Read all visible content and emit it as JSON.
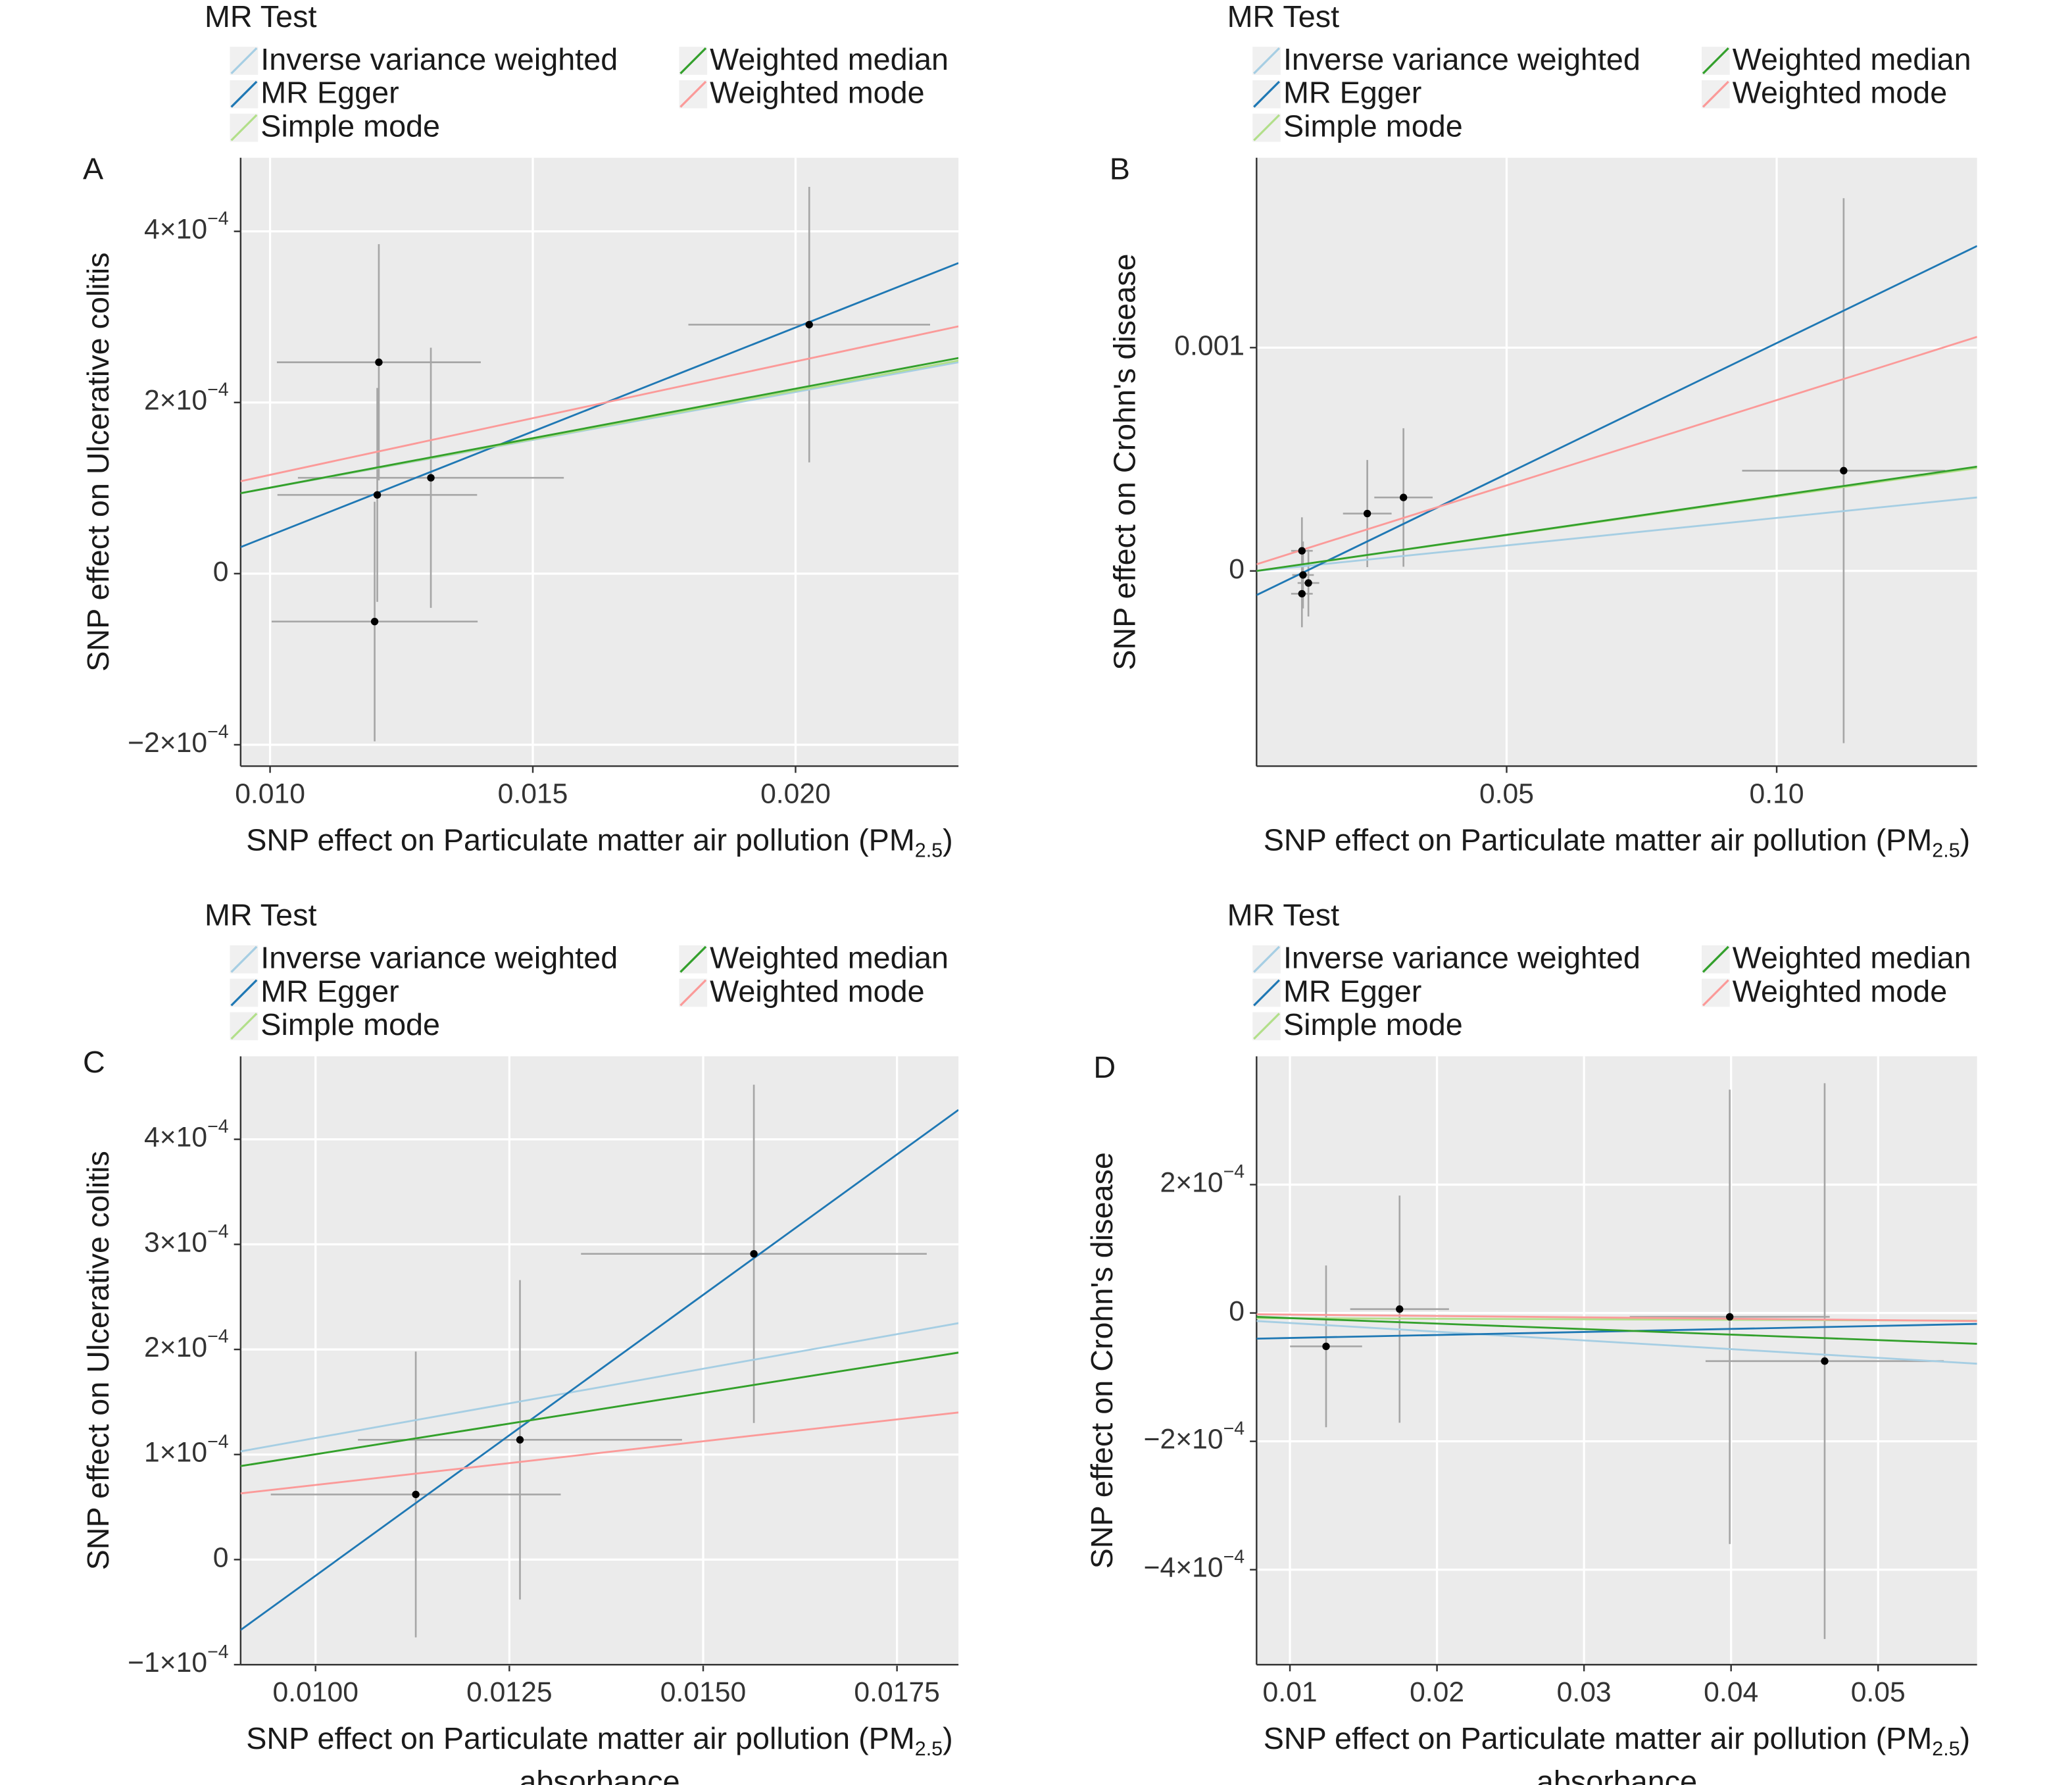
{
  "chart_data": [
    {
      "type": "scatter",
      "panel": "A",
      "legend_title": "MR Test",
      "xlabel": "SNP effect on Particulate matter air pollution (PM",
      "xlabel_sub": "2.5",
      "xlabel_end": ")",
      "ylabel": "SNP effect on Ulcerative colitis",
      "x": [
        0.01207,
        0.01204,
        0.01199,
        0.01306,
        0.02026
      ],
      "values": [
        0.000247,
        9.2e-05,
        -5.6e-05,
        0.000112,
        0.000291
      ],
      "x_errors": [
        0.00194,
        0.0019,
        0.00196,
        0.00253,
        0.0023
      ],
      "errors": [
        0.000138,
        0.000125,
        0.00014,
        0.000152,
        0.000161
      ],
      "series": [
        {
          "name": "Inverse variance weighted",
          "color": "#a6cee3",
          "values": [
            9.4e-05,
            0.000247
          ]
        },
        {
          "name": "MR Egger",
          "color": "#1f78b4",
          "values": [
            3.1e-05,
            0.000363
          ]
        },
        {
          "name": "Simple mode",
          "color": "#b2df8a",
          "values": [
            9.4e-05,
            0.000249
          ]
        },
        {
          "name": "Weighted median",
          "color": "#33a02c",
          "values": [
            9.4e-05,
            0.000252
          ]
        },
        {
          "name": "Weighted mode",
          "color": "#fb9a99",
          "values": [
            0.000108,
            0.000289
          ]
        }
      ],
      "xlim": [
        0.00944,
        0.0231
      ],
      "ylim": [
        -0.000225,
        0.000486
      ],
      "xticks": [
        {
          "value": 0.01,
          "label": "0.010"
        },
        {
          "value": 0.015,
          "label": "0.015"
        },
        {
          "value": 0.02,
          "label": "0.020"
        }
      ],
      "yticks": [
        {
          "value": -0.0002,
          "label": "−2×10−4"
        },
        0,
        {
          "value": 0.0002,
          "label": "2×10−4"
        },
        {
          "value": 0.0004,
          "label": "4×10−4"
        }
      ],
      "grid": true
    },
    {
      "type": "scatter",
      "panel": "B",
      "legend_title": "MR Test",
      "xlabel": "SNP effect on Particulate matter air pollution (PM",
      "xlabel_sub": "2.5",
      "xlabel_end": ")",
      "ylabel": "SNP effect on Crohn's disease",
      "x": [
        0.0121,
        0.0123,
        0.0133,
        0.0121,
        0.0242,
        0.0309,
        0.1124
      ],
      "values": [
        9e-05,
        -1.8e-05,
        -5.4e-05,
        -0.000102,
        0.000257,
        0.000329,
        0.000449
      ],
      "x_errors": [
        0.002,
        0.002,
        0.002,
        0.002,
        0.0045,
        0.0054,
        0.0188
      ],
      "errors": [
        0.00015,
        0.00015,
        0.00015,
        0.00015,
        0.00024,
        0.00031,
        0.00122
      ],
      "series": [
        {
          "name": "Inverse variance weighted",
          "color": "#a6cee3",
          "values": [
            0,
            0.000329
          ]
        },
        {
          "name": "MR Egger",
          "color": "#1f78b4",
          "values": [
            -0.000108,
            0.001455
          ]
        },
        {
          "name": "Simple mode",
          "color": "#b2df8a",
          "values": [
            0,
            0.000461
          ]
        },
        {
          "name": "Weighted median",
          "color": "#33a02c",
          "values": [
            0,
            0.000467
          ]
        },
        {
          "name": "Weighted mode",
          "color": "#fb9a99",
          "values": [
            3e-05,
            0.001048
          ]
        }
      ],
      "xlim": [
        0.0037,
        0.1371
      ],
      "ylim": [
        -0.000874,
        0.00185
      ],
      "xticks": [
        0.05,
        {
          "value": 0.1,
          "label": "0.10"
        }
      ],
      "yticks": [
        0,
        0.001
      ],
      "grid": true
    },
    {
      "type": "scatter",
      "panel": "C",
      "legend_title": "MR Test",
      "xlabel": "SNP effect on Particulate matter air pollution (PM",
      "xlabel_sub": "2.5",
      "xlabel_end": ")",
      "xlabel_line2": "absorbance",
      "ylabel": "SNP effect on Ulcerative colitis",
      "x": [
        0.011293,
        0.012637,
        0.015654
      ],
      "values": [
        6.2e-05,
        0.000114,
        0.000291
      ],
      "x_errors": [
        0.00187,
        0.00209,
        0.00223
      ],
      "errors": [
        0.000136,
        0.000152,
        0.000161
      ],
      "series": [
        {
          "name": "Inverse variance weighted",
          "color": "#a6cee3",
          "values": [
            0.000103,
            0.000225
          ]
        },
        {
          "name": "MR Egger",
          "color": "#1f78b4",
          "values": [
            -6.7e-05,
            0.000428
          ]
        },
        {
          "name": "Simple mode",
          "color": "#b2df8a",
          "values": [
            8.9e-05,
            0.000197
          ]
        },
        {
          "name": "Weighted median",
          "color": "#33a02c",
          "values": [
            8.9e-05,
            0.000197
          ]
        },
        {
          "name": "Weighted mode",
          "color": "#fb9a99",
          "values": [
            6.3e-05,
            0.00014
          ]
        }
      ],
      "xlim": [
        0.009034,
        0.018293
      ],
      "ylim": [
        -0.0001,
        0.000479
      ],
      "xticks": [
        {
          "value": 0.01,
          "label": "0.0100"
        },
        0.0125,
        {
          "value": 0.015,
          "label": "0.0150"
        },
        0.0175
      ],
      "yticks": [
        {
          "value": -0.0001,
          "label": "−1×10−4"
        },
        0,
        {
          "value": 0.0001,
          "label": "1×10−4"
        },
        {
          "value": 0.0002,
          "label": "2×10−4"
        },
        {
          "value": 0.0003,
          "label": "3×10−4"
        },
        {
          "value": 0.0004,
          "label": "4×10−4"
        }
      ],
      "grid": true
    },
    {
      "type": "scatter",
      "panel": "D",
      "legend_title": "MR Test",
      "xlabel": "SNP effect on Particulate matter air pollution (PM",
      "xlabel_sub": "2.5",
      "xlabel_end": ")",
      "xlabel_line2": "absorbance",
      "ylabel": "SNP effect on Crohn's disease",
      "x": [
        0.012457,
        0.017457,
        0.03991,
        0.046366
      ],
      "values": [
        -5.2e-05,
        6e-06,
        -6e-06,
        -7.5e-05
      ],
      "x_errors": [
        0.00245,
        0.00336,
        0.0068,
        0.0081
      ],
      "errors": [
        0.000126,
        0.000177,
        0.000354,
        0.000433
      ],
      "series": [
        {
          "name": "Inverse variance weighted",
          "color": "#a6cee3",
          "values": [
            -1.25e-05,
            -7.9e-05
          ]
        },
        {
          "name": "MR Egger",
          "color": "#1f78b4",
          "values": [
            -4e-05,
            -1.7e-05
          ]
        },
        {
          "name": "Simple mode",
          "color": "#b2df8a",
          "values": [
            -8e-06,
            -1.2e-05
          ]
        },
        {
          "name": "Weighted median",
          "color": "#33a02c",
          "values": [
            -6e-06,
            -4.8e-05
          ]
        },
        {
          "name": "Weighted mode",
          "color": "#fb9a99",
          "values": [
            -2e-06,
            -1.25e-05
          ]
        }
      ],
      "xlim": [
        0.00773,
        0.05673
      ],
      "ylim": [
        -0.000548,
        0.0004
      ],
      "xticks": [
        0.01,
        0.02,
        0.03,
        0.04,
        0.05
      ],
      "yticks": [
        {
          "value": -0.0004,
          "label": "−4×10−4"
        },
        {
          "value": -0.0002,
          "label": "−2×10−4"
        },
        0,
        {
          "value": 0.0002,
          "label": "2×10−4"
        }
      ],
      "grid": true
    }
  ]
}
